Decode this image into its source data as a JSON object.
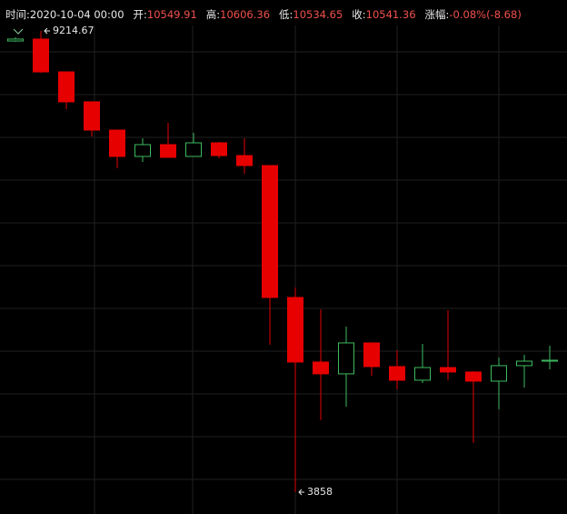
{
  "header": [
    {
      "label": "时间:",
      "value": "2020-10-04 00:00"
    },
    {
      "label": "开:",
      "value": "10549.91"
    },
    {
      "label": "高:",
      "value": "10606.36"
    },
    {
      "label": "低:",
      "value": "10534.65"
    },
    {
      "label": "收:",
      "value": "10541.36"
    },
    {
      "label": "涨幅:",
      "value": "-0.08%(-8.68)"
    }
  ],
  "chart_data": {
    "type": "candlestick",
    "up_color": "#3dbb5f",
    "down_color": "#e60000",
    "ylim": [
      3604,
      9278
    ],
    "max_label": 9214.67,
    "min_label": 3858,
    "open": [
      9098,
      9120,
      8739,
      8391,
      8063,
      7757,
      7894,
      7757,
      7915,
      7767,
      7651,
      6119,
      5369,
      5232,
      5591,
      5316,
      5158,
      5305,
      5253,
      5147,
      5327,
      5379
    ],
    "high": [
      9141,
      9214.67,
      8739,
      8391,
      8063,
      7968,
      8148,
      8031,
      7926,
      7968,
      7651,
      6235,
      5982,
      5781,
      5591,
      5506,
      5580,
      5971,
      5263,
      5422,
      5453,
      5559
    ],
    "low": [
      9088,
      8729,
      8306,
      7989,
      7619,
      7693,
      7746,
      7757,
      7736,
      7556,
      5570,
      3858,
      4693,
      4851,
      5210,
      5052,
      5126,
      5158,
      4429,
      4820,
      5073,
      5284
    ],
    "close": [
      9120,
      8739,
      8391,
      8063,
      7757,
      7894,
      7746,
      7915,
      7767,
      7651,
      6119,
      5369,
      5232,
      5591,
      5316,
      5158,
      5305,
      5253,
      5147,
      5327,
      5379,
      5390
    ]
  }
}
